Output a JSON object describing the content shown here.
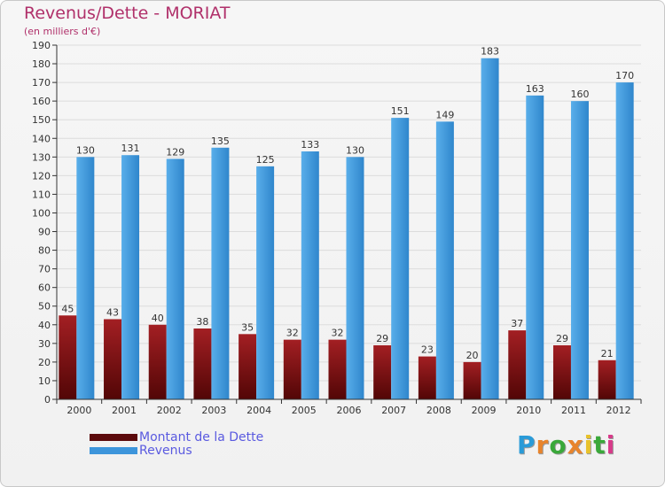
{
  "title": "Revenus/Dette - MORIAT",
  "subtitle": "(en milliers d'€)",
  "chart_data": {
    "type": "bar",
    "title": "Revenus/Dette - MORIAT",
    "subtitle": "(en milliers d'€)",
    "categories": [
      "2000",
      "2001",
      "2002",
      "2003",
      "2004",
      "2005",
      "2006",
      "2007",
      "2008",
      "2009",
      "2010",
      "2011",
      "2012"
    ],
    "series": [
      {
        "name": "Montant de la Dette",
        "color": "#7a1518",
        "values": [
          45,
          43,
          40,
          38,
          35,
          32,
          32,
          29,
          23,
          20,
          37,
          29,
          21
        ]
      },
      {
        "name": "Revenus",
        "color": "#3d95db",
        "values": [
          130,
          131,
          129,
          135,
          125,
          133,
          130,
          151,
          149,
          183,
          163,
          160,
          170
        ]
      }
    ],
    "ylim": [
      0,
      190
    ],
    "yticks": [
      0,
      10,
      20,
      30,
      40,
      50,
      60,
      70,
      80,
      90,
      100,
      110,
      120,
      130,
      140,
      150,
      160,
      170,
      180,
      190
    ],
    "grid": true,
    "legend_position": "bottom-left"
  },
  "legend": [
    {
      "label": "Montant de la Dette",
      "color": "#5c0a0c"
    },
    {
      "label": "Revenus",
      "color": "#3d95db"
    }
  ],
  "logo": {
    "letters": [
      "P",
      "r",
      "o",
      "x",
      "i",
      "t",
      "i"
    ],
    "colors": [
      "#2a9bd8",
      "#e8842c",
      "#3aa83a",
      "#e8842c",
      "#e8c22c",
      "#3aa83a",
      "#d83a8a"
    ]
  }
}
